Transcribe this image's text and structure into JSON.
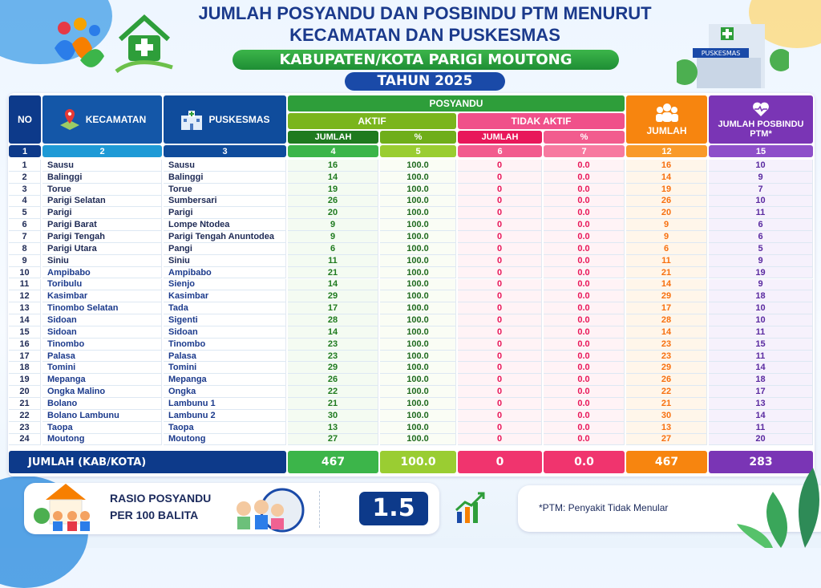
{
  "header": {
    "title_line1": "JUMLAH POSYANDU DAN POSBINDU PTM MENURUT",
    "title_line2": "KECAMATAN DAN PUSKESMAS",
    "region": "KABUPATEN/KOTA PARIGI MOUTONG",
    "year": "TAHUN 2025",
    "building_sign": "PUSKESMAS"
  },
  "columns": {
    "no": "NO",
    "kecamatan": "KECAMATAN",
    "puskesmas": "PUSKESMAS",
    "posyandu": "POSYANDU",
    "aktif": "AKTIF",
    "tidak_aktif": "TIDAK AKTIF",
    "jumlah_sub": "JUMLAH",
    "pct": "%",
    "jumlah": "JUMLAH",
    "posbindu": "JUMLAH POSBINDU PTM*",
    "numbers": [
      "1",
      "2",
      "3",
      "4",
      "5",
      "6",
      "7",
      "12",
      "15"
    ]
  },
  "rows": [
    [
      "1",
      "Sausu",
      "Sausu",
      "16",
      "100.0",
      "0",
      "0.0",
      "16",
      "10"
    ],
    [
      "2",
      "Balinggi",
      "Balinggi",
      "14",
      "100.0",
      "0",
      "0.0",
      "14",
      "9"
    ],
    [
      "3",
      "Torue",
      "Torue",
      "19",
      "100.0",
      "0",
      "0.0",
      "19",
      "7"
    ],
    [
      "4",
      "Parigi Selatan",
      "Sumbersari",
      "26",
      "100.0",
      "0",
      "0.0",
      "26",
      "10"
    ],
    [
      "5",
      "Parigi",
      "Parigi",
      "20",
      "100.0",
      "0",
      "0.0",
      "20",
      "11"
    ],
    [
      "6",
      "Parigi Barat",
      "Lompe Ntodea",
      "9",
      "100.0",
      "0",
      "0.0",
      "9",
      "6"
    ],
    [
      "7",
      "Parigi Tengah",
      "Parigi Tengah Anuntodea",
      "9",
      "100.0",
      "0",
      "0.0",
      "9",
      "6"
    ],
    [
      "8",
      "Parigi Utara",
      "Pangi",
      "6",
      "100.0",
      "0",
      "0.0",
      "6",
      "5"
    ],
    [
      "9",
      "Siniu",
      "Siniu",
      "11",
      "100.0",
      "0",
      "0.0",
      "11",
      "9"
    ],
    [
      "10",
      "Ampibabo",
      "Ampibabo",
      "21",
      "100.0",
      "0",
      "0.0",
      "21",
      "19"
    ],
    [
      "11",
      "Toribulu",
      "Sienjo",
      "14",
      "100.0",
      "0",
      "0.0",
      "14",
      "9"
    ],
    [
      "12",
      "Kasimbar",
      "Kasimbar",
      "29",
      "100.0",
      "0",
      "0.0",
      "29",
      "18"
    ],
    [
      "13",
      "Tinombo Selatan",
      "Tada",
      "17",
      "100.0",
      "0",
      "0.0",
      "17",
      "10"
    ],
    [
      "14",
      "Sidoan",
      "Sigenti",
      "28",
      "100.0",
      "0",
      "0.0",
      "28",
      "10"
    ],
    [
      "15",
      "Sidoan",
      "Sidoan",
      "14",
      "100.0",
      "0",
      "0.0",
      "14",
      "11"
    ],
    [
      "16",
      "Tinombo",
      "Tinombo",
      "23",
      "100.0",
      "0",
      "0.0",
      "23",
      "15"
    ],
    [
      "17",
      "Palasa",
      "Palasa",
      "23",
      "100.0",
      "0",
      "0.0",
      "23",
      "11"
    ],
    [
      "18",
      "Tomini",
      "Tomini",
      "29",
      "100.0",
      "0",
      "0.0",
      "29",
      "14"
    ],
    [
      "19",
      "Mepanga",
      "Mepanga",
      "26",
      "100.0",
      "0",
      "0.0",
      "26",
      "18"
    ],
    [
      "20",
      "Ongka Malino",
      "Ongka",
      "22",
      "100.0",
      "0",
      "0.0",
      "22",
      "17"
    ],
    [
      "21",
      "Bolano",
      "Lambunu 1",
      "21",
      "100.0",
      "0",
      "0.0",
      "21",
      "13"
    ],
    [
      "22",
      "Bolano Lambunu",
      "Lambunu 2",
      "30",
      "100.0",
      "0",
      "0.0",
      "30",
      "14"
    ],
    [
      "23",
      "Taopa",
      "Taopa",
      "13",
      "100.0",
      "0",
      "0.0",
      "13",
      "11"
    ],
    [
      "24",
      "Moutong",
      "Moutong",
      "27",
      "100.0",
      "0",
      "0.0",
      "27",
      "20"
    ]
  ],
  "total": {
    "label": "JUMLAH (KAB/KOTA)",
    "values": [
      "467",
      "100.0",
      "0",
      "0.0",
      "467",
      "283"
    ]
  },
  "ratio": {
    "label_line1": "RASIO POSYANDU",
    "label_line2": "PER 100 BALITA",
    "value": "1.5"
  },
  "note": "*PTM:  Penyakit Tidak Menular",
  "colors": {
    "navy": "#0d3a8a",
    "green": "#2e9e3a",
    "lime": "#8cc21f",
    "pink": "#f0346e",
    "orange": "#f7850f",
    "purple": "#7a35b5"
  }
}
